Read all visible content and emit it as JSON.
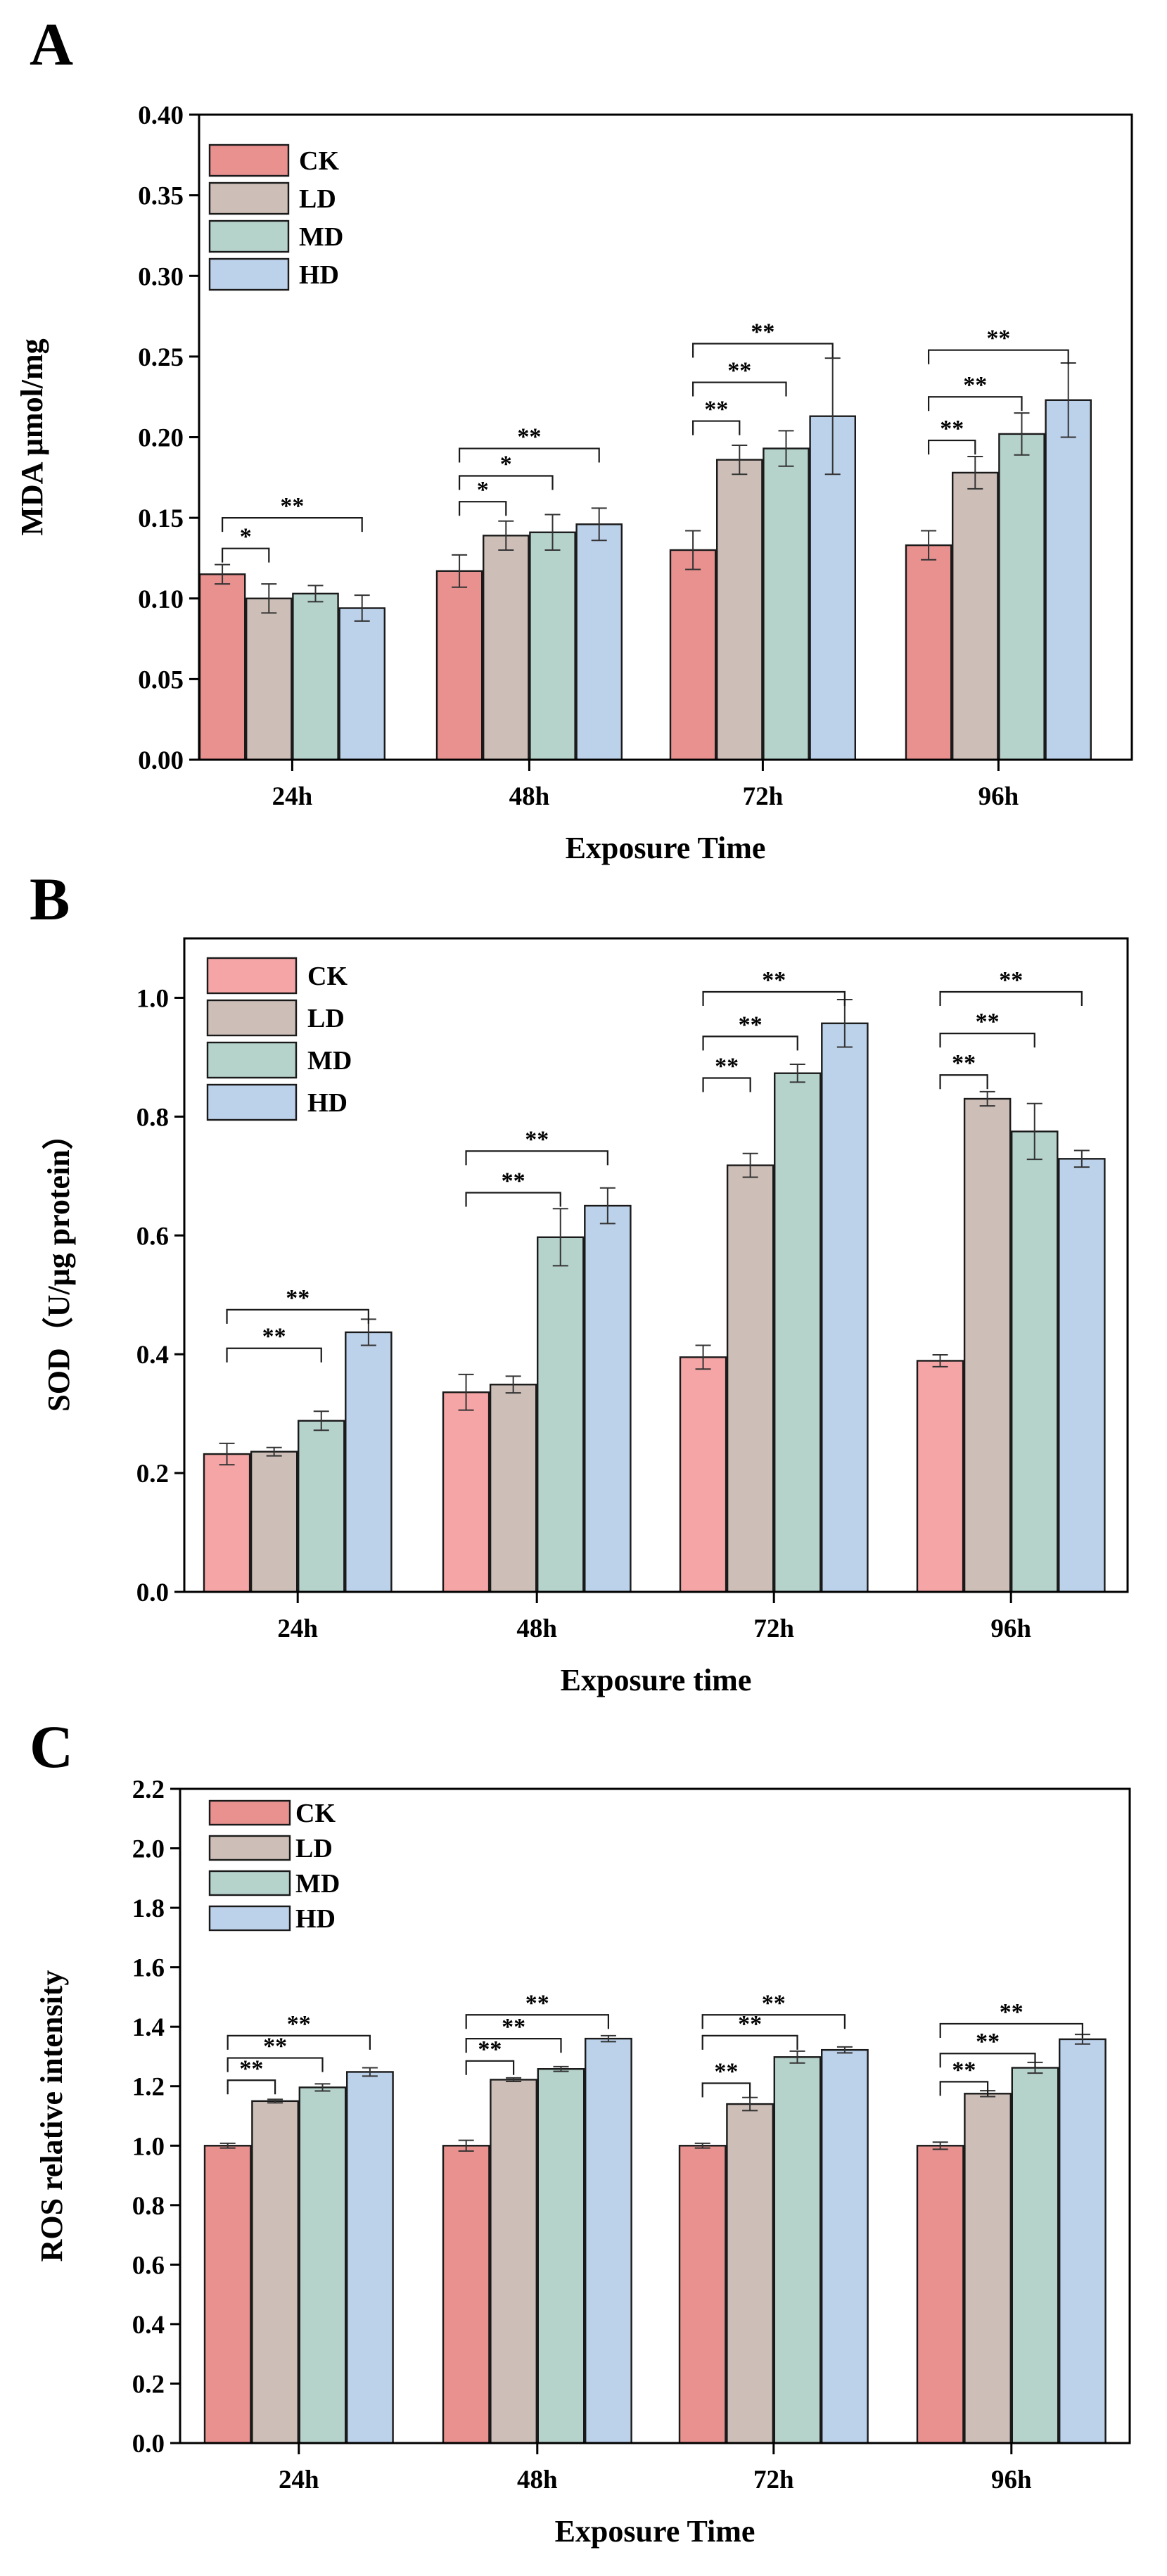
{
  "chart_data": [
    {
      "type": "bar",
      "panel": "A",
      "xlabel": "Exposure Time",
      "ylabel": "MDA μmol/mg",
      "ylim": [
        0,
        0.4
      ],
      "yticks": [
        0.0,
        0.05,
        0.1,
        0.15,
        0.2,
        0.25,
        0.3,
        0.35,
        0.4
      ],
      "ytick_labels": [
        "0.00",
        "0.05",
        "0.10",
        "0.15",
        "0.20",
        "0.25",
        "0.30",
        "0.35",
        "0.40"
      ],
      "categories": [
        "24h",
        "48h",
        "72h",
        "96h"
      ],
      "legend_position": "top-left",
      "series": [
        {
          "name": "CK",
          "color": "#e8918f",
          "values": [
            0.115,
            0.117,
            0.13,
            0.133
          ],
          "errors": [
            0.006,
            0.01,
            0.012,
            0.009
          ]
        },
        {
          "name": "LD",
          "color": "#cdbfb8",
          "values": [
            0.1,
            0.139,
            0.186,
            0.178
          ],
          "errors": [
            0.009,
            0.009,
            0.009,
            0.01
          ]
        },
        {
          "name": "MD",
          "color": "#b5d2cb",
          "values": [
            0.103,
            0.141,
            0.193,
            0.202
          ],
          "errors": [
            0.005,
            0.011,
            0.011,
            0.013
          ]
        },
        {
          "name": "HD",
          "color": "#bcd1ea",
          "values": [
            0.094,
            0.146,
            0.213,
            0.223
          ],
          "errors": [
            0.008,
            0.01,
            0.036,
            0.023
          ]
        }
      ],
      "significance": [
        {
          "group": 0,
          "to": 1,
          "label": "*",
          "y": 0.131
        },
        {
          "group": 0,
          "to": 3,
          "label": "**",
          "y": 0.15
        },
        {
          "group": 1,
          "to": 1,
          "label": "*",
          "y": 0.16
        },
        {
          "group": 1,
          "to": 2,
          "label": "*",
          "y": 0.176
        },
        {
          "group": 1,
          "to": 3,
          "label": "**",
          "y": 0.193
        },
        {
          "group": 2,
          "to": 1,
          "label": "**",
          "y": 0.21
        },
        {
          "group": 2,
          "to": 2,
          "label": "**",
          "y": 0.234
        },
        {
          "group": 2,
          "to": 3,
          "label": "**",
          "y": 0.258
        },
        {
          "group": 3,
          "to": 1,
          "label": "**",
          "y": 0.198
        },
        {
          "group": 3,
          "to": 2,
          "label": "**",
          "y": 0.225
        },
        {
          "group": 3,
          "to": 3,
          "label": "**",
          "y": 0.254
        }
      ]
    },
    {
      "type": "bar",
      "panel": "B",
      "xlabel": "Exposure time",
      "ylabel": "SOD（U/μg protein）",
      "ylim": [
        0,
        1.1
      ],
      "yticks": [
        0.0,
        0.2,
        0.4,
        0.6,
        0.8,
        1.0
      ],
      "ytick_labels": [
        "0.0",
        "0.2",
        "0.4",
        "0.6",
        "0.8",
        "1.0"
      ],
      "categories": [
        "24h",
        "48h",
        "72h",
        "96h"
      ],
      "legend_position": "top-left",
      "series": [
        {
          "name": "CK",
          "color": "#f5a5a6",
          "values": [
            0.232,
            0.336,
            0.395,
            0.389
          ],
          "errors": [
            0.018,
            0.03,
            0.02,
            0.01
          ]
        },
        {
          "name": "LD",
          "color": "#cdbfb8",
          "values": [
            0.236,
            0.349,
            0.718,
            0.83
          ],
          "errors": [
            0.007,
            0.014,
            0.02,
            0.012
          ]
        },
        {
          "name": "MD",
          "color": "#b5d2cb",
          "values": [
            0.288,
            0.597,
            0.873,
            0.775
          ],
          "errors": [
            0.016,
            0.048,
            0.015,
            0.047
          ]
        },
        {
          "name": "HD",
          "color": "#bcd1ea",
          "values": [
            0.437,
            0.65,
            0.957,
            0.729
          ],
          "errors": [
            0.022,
            0.03,
            0.04,
            0.014
          ]
        }
      ],
      "significance": [
        {
          "group": 0,
          "to": 2,
          "label": "**",
          "y": 0.41
        },
        {
          "group": 0,
          "to": 3,
          "label": "**",
          "y": 0.475
        },
        {
          "group": 1,
          "to": 2,
          "label": "**",
          "y": 0.672
        },
        {
          "group": 1,
          "to": 3,
          "label": "**",
          "y": 0.742
        },
        {
          "group": 2,
          "to": 1,
          "label": "**",
          "y": 0.865
        },
        {
          "group": 2,
          "to": 2,
          "label": "**",
          "y": 0.935
        },
        {
          "group": 2,
          "to": 3,
          "label": "**",
          "y": 1.01
        },
        {
          "group": 3,
          "to": 1,
          "label": "**",
          "y": 0.87
        },
        {
          "group": 3,
          "to": 2,
          "label": "**",
          "y": 0.94
        },
        {
          "group": 3,
          "to": 3,
          "label": "**",
          "y": 1.01
        }
      ]
    },
    {
      "type": "bar",
      "panel": "C",
      "xlabel": "Exposure Time",
      "ylabel": "ROS relative intensity",
      "ylim": [
        0,
        2.2
      ],
      "yticks": [
        0.0,
        0.2,
        0.4,
        0.6,
        0.8,
        1.0,
        1.2,
        1.4,
        1.6,
        1.8,
        2.0,
        2.2
      ],
      "ytick_labels": [
        "0.0",
        "0.2",
        "0.4",
        "0.6",
        "0.8",
        "1.0",
        "1.2",
        "1.4",
        "1.6",
        "1.8",
        "2.0",
        "2.2"
      ],
      "categories": [
        "24h",
        "48h",
        "72h",
        "96h"
      ],
      "legend_position": "top-left",
      "series": [
        {
          "name": "CK",
          "color": "#e8918f",
          "values": [
            1.0,
            1.0,
            1.0,
            1.0
          ],
          "errors": [
            0.008,
            0.018,
            0.008,
            0.012
          ]
        },
        {
          "name": "LD",
          "color": "#cdbfb8",
          "values": [
            1.15,
            1.222,
            1.14,
            1.175
          ],
          "errors": [
            0.006,
            0.006,
            0.022,
            0.01
          ]
        },
        {
          "name": "MD",
          "color": "#b5d2cb",
          "values": [
            1.196,
            1.258,
            1.298,
            1.262
          ],
          "errors": [
            0.012,
            0.008,
            0.02,
            0.018
          ]
        },
        {
          "name": "HD",
          "color": "#bcd1ea",
          "values": [
            1.248,
            1.36,
            1.322,
            1.358
          ],
          "errors": [
            0.014,
            0.01,
            0.01,
            0.016
          ]
        }
      ],
      "significance": [
        {
          "group": 0,
          "to": 1,
          "label": "**",
          "y": 1.22
        },
        {
          "group": 0,
          "to": 2,
          "label": "**",
          "y": 1.295
        },
        {
          "group": 0,
          "to": 3,
          "label": "**",
          "y": 1.37
        },
        {
          "group": 1,
          "to": 1,
          "label": "**",
          "y": 1.285
        },
        {
          "group": 1,
          "to": 2,
          "label": "**",
          "y": 1.36
        },
        {
          "group": 1,
          "to": 3,
          "label": "**",
          "y": 1.44
        },
        {
          "group": 2,
          "to": 1,
          "label": "**",
          "y": 1.21
        },
        {
          "group": 2,
          "to": 2,
          "label": "**",
          "y": 1.37
        },
        {
          "group": 2,
          "to": 3,
          "label": "**",
          "y": 1.44
        },
        {
          "group": 3,
          "to": 1,
          "label": "**",
          "y": 1.215
        },
        {
          "group": 3,
          "to": 2,
          "label": "**",
          "y": 1.31
        },
        {
          "group": 3,
          "to": 3,
          "label": "**",
          "y": 1.41
        }
      ]
    }
  ]
}
